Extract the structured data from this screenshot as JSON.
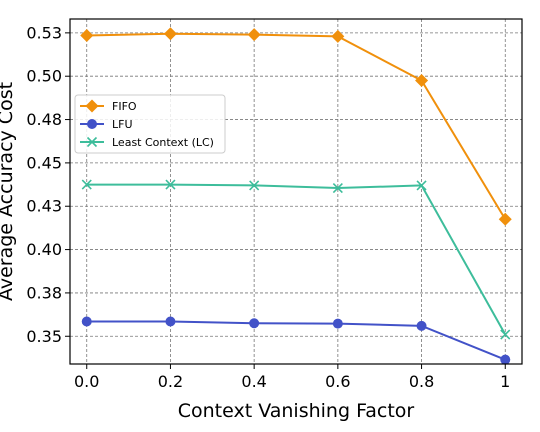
{
  "chart_data": {
    "type": "line",
    "title": "",
    "xlabel": "Context Vanishing Factor",
    "ylabel": "Average Accuracy Cost",
    "x": [
      0.0,
      0.2,
      0.4,
      0.6,
      0.8,
      1
    ],
    "x_tick_labels": [
      "0.0",
      "0.2",
      "0.4",
      "0.6",
      "0.8",
      "1"
    ],
    "xlim": [
      -0.04,
      1.04
    ],
    "ylim": [
      0.334,
      0.533
    ],
    "y_ticks": [
      0.35,
      0.375,
      0.4,
      0.425,
      0.45,
      0.475,
      0.5,
      0.525
    ],
    "y_tick_labels": [
      "0.35",
      "0.38",
      "0.40",
      "0.43",
      "0.45",
      "0.48",
      "0.50",
      "0.53"
    ],
    "grid": true,
    "legend_position": "center-left",
    "series": [
      {
        "name": "FIFO",
        "color": "#f0900c",
        "marker": "diamond",
        "values": [
          0.5235,
          0.5245,
          0.524,
          0.523,
          0.4975,
          0.4175
        ]
      },
      {
        "name": "LFU",
        "color": "#4252c8",
        "marker": "circle",
        "values": [
          0.3585,
          0.3585,
          0.3575,
          0.3573,
          0.356,
          0.3365
        ]
      },
      {
        "name": "Least Context (LC)",
        "color": "#3dbd9b",
        "marker": "x",
        "values": [
          0.4375,
          0.4375,
          0.437,
          0.4355,
          0.437,
          0.351
        ]
      }
    ]
  }
}
